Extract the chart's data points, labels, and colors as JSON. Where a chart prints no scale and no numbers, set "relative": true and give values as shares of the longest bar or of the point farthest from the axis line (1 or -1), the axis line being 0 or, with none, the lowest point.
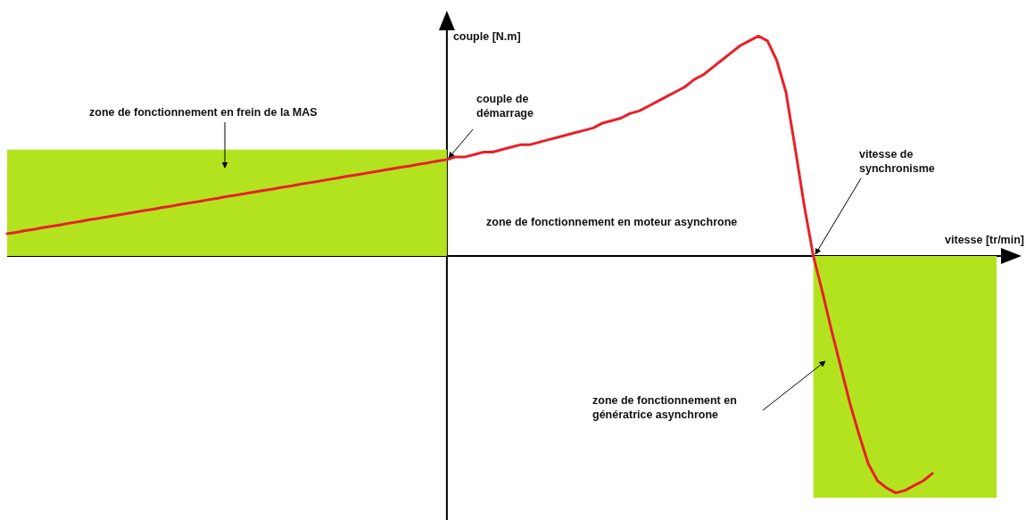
{
  "chart_data": {
    "type": "line",
    "relative": true,
    "xlabel": "vitesse [tr/min]",
    "ylabel": "couple [N.m]",
    "categories": [
      null,
      null,
      null,
      null,
      null,
      null,
      null,
      null,
      null,
      null,
      null,
      null,
      null,
      null,
      null,
      null,
      null,
      null,
      null,
      null,
      null,
      null,
      null,
      null,
      null,
      null,
      null,
      null,
      null,
      null,
      null,
      null,
      null,
      null,
      null,
      null,
      null,
      null,
      null,
      null,
      null,
      null,
      null,
      null,
      null,
      null,
      null,
      null,
      null,
      null,
      null,
      null,
      null,
      null,
      null,
      null,
      null,
      null,
      null,
      null,
      null,
      null,
      null,
      null,
      null,
      null,
      null,
      null,
      null,
      null,
      null,
      null,
      null,
      null,
      null,
      null,
      null,
      null,
      null,
      null,
      null,
      null,
      null,
      null,
      null,
      null,
      null,
      null,
      null,
      null,
      null,
      null,
      null,
      null,
      null,
      null,
      null,
      null,
      null,
      null,
      null,
      null,
      null,
      null,
      null,
      null,
      null,
      null,
      null
    ],
    "annotations": [
      "zone de fonctionnement en frein de la MAS",
      "couple de démarrage",
      "vitesse de synchronisme",
      "zone de fonctionnement en moteur asynchrone",
      "zone de fonctionnement en génératrice asynchrone"
    ],
    "series": [
      {
        "type": "area",
        "color": "#b3e31e",
        "values": [
          0.44,
          0.44,
          0.44,
          0.44,
          0.44,
          0.44,
          0.44,
          0.44,
          0.44,
          0.44,
          0.44,
          0.44,
          0.44,
          0.44,
          0.44,
          0.44,
          0.44,
          0.44,
          0.44,
          0.44,
          0.44,
          0.44,
          0.44,
          0.44,
          0.44,
          0.44,
          0.44,
          0.44,
          0.44,
          0.44,
          0.44,
          0.44,
          0.44,
          0.44,
          0.44,
          0.44,
          0.44,
          0.44,
          0.44,
          0.44,
          0.44,
          0.44,
          0.44,
          0.44,
          0.44,
          0.44,
          0.44,
          0.44,
          0.44,
          null,
          null,
          null,
          null,
          null,
          null,
          null,
          null,
          null,
          null,
          null,
          null,
          null,
          null,
          null,
          null,
          null,
          null,
          null,
          null,
          null,
          null,
          null,
          null,
          null,
          null,
          null,
          null,
          null,
          null,
          null,
          null,
          null,
          null,
          null,
          null,
          null,
          null,
          null,
          null,
          null,
          null,
          null,
          null,
          null,
          null,
          null,
          null,
          null,
          null,
          null,
          null,
          null,
          null,
          null,
          null,
          null,
          null,
          null,
          null
        ]
      },
      {
        "type": "area",
        "color": "#b3e31e",
        "values": [
          null,
          null,
          null,
          null,
          null,
          null,
          null,
          null,
          null,
          null,
          null,
          null,
          null,
          null,
          null,
          null,
          null,
          null,
          null,
          null,
          null,
          null,
          null,
          null,
          null,
          null,
          null,
          null,
          null,
          null,
          null,
          null,
          null,
          null,
          null,
          null,
          null,
          null,
          null,
          null,
          null,
          null,
          null,
          null,
          null,
          null,
          null,
          null,
          null,
          null,
          null,
          null,
          null,
          null,
          null,
          null,
          null,
          null,
          null,
          null,
          null,
          null,
          null,
          null,
          null,
          null,
          null,
          null,
          null,
          null,
          null,
          null,
          null,
          null,
          null,
          null,
          null,
          null,
          null,
          null,
          null,
          null,
          null,
          null,
          null,
          null,
          null,
          null,
          -1,
          -1,
          -1,
          -1,
          -1,
          -1,
          -1,
          -1,
          -1,
          -1,
          -1,
          -1,
          -1,
          -1,
          -1,
          -1,
          -1,
          -1,
          -1,
          -1,
          -1
        ]
      },
      {
        "color": "#e8202a",
        "values": [
          0.092,
          0.098,
          0.105,
          0.111,
          0.118,
          0.124,
          0.13,
          0.137,
          0.143,
          0.15,
          0.156,
          0.162,
          0.169,
          0.175,
          0.182,
          0.188,
          0.194,
          0.201,
          0.207,
          0.214,
          0.22,
          0.226,
          0.233,
          0.239,
          0.246,
          0.252,
          0.258,
          0.265,
          0.271,
          0.277,
          0.284,
          0.29,
          0.297,
          0.303,
          0.309,
          0.316,
          0.322,
          0.329,
          0.335,
          0.341,
          0.348,
          0.354,
          0.361,
          0.367,
          0.373,
          0.38,
          0.386,
          0.393,
          0.399,
          0.41,
          0.41,
          0.42,
          0.43,
          0.43,
          0.44,
          0.45,
          0.46,
          0.46,
          0.47,
          0.48,
          0.49,
          0.5,
          0.51,
          0.52,
          0.53,
          0.55,
          0.56,
          0.57,
          0.59,
          0.6,
          0.62,
          0.64,
          0.66,
          0.68,
          0.7,
          0.73,
          0.75,
          0.78,
          0.81,
          0.84,
          0.87,
          0.89,
          0.91,
          0.89,
          0.81,
          0.68,
          0.45,
          0.21,
          0,
          -0.15,
          -0.31,
          -0.46,
          -0.61,
          -0.74,
          -0.86,
          -0.93,
          -0.96,
          -0.98,
          -0.97,
          -0.95,
          -0.93,
          -0.9,
          null,
          null,
          null,
          null,
          null,
          null,
          null
        ]
      }
    ]
  }
}
